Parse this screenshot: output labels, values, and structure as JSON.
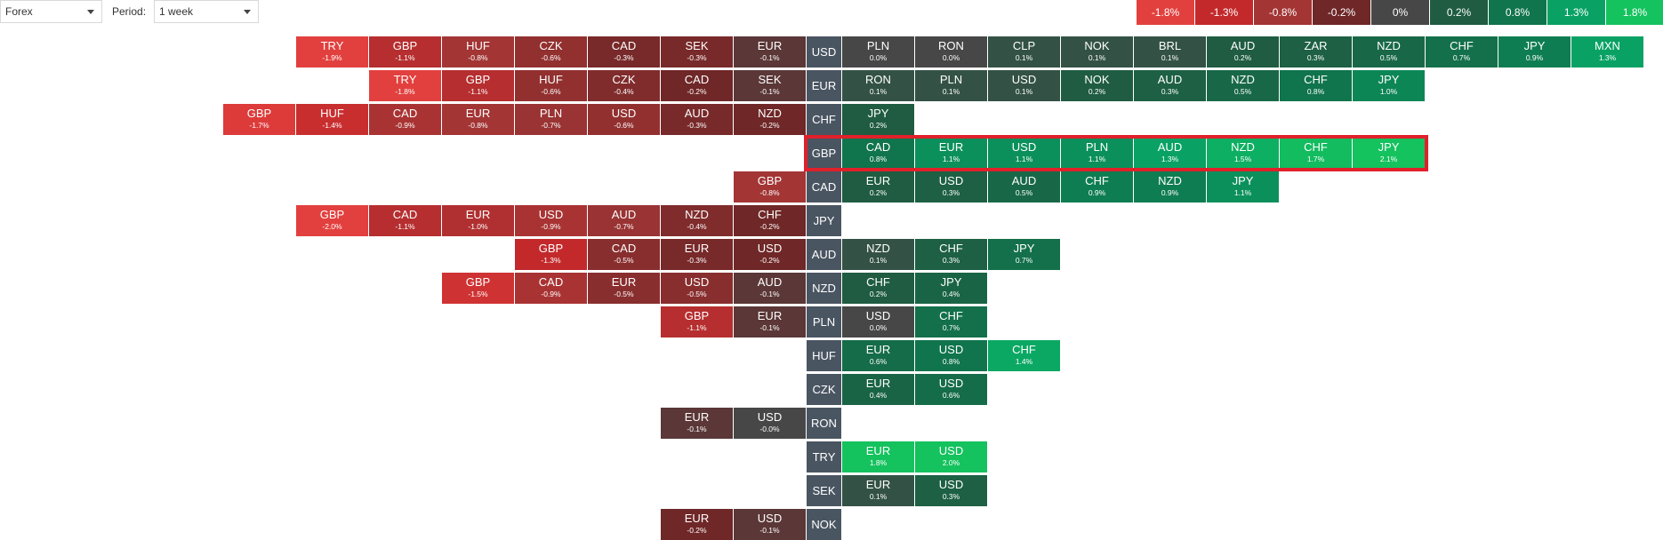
{
  "controls": {
    "market_value": "Forex",
    "period_label": "Period:",
    "period_value": "1 week"
  },
  "legend": [
    {
      "text": "-1.8%",
      "color": "#e2403e"
    },
    {
      "text": "-1.3%",
      "color": "#c3292b"
    },
    {
      "text": "-0.8%",
      "color": "#a33535"
    },
    {
      "text": "-0.2%",
      "color": "#6f2727"
    },
    {
      "text": "0%",
      "color": "#474747"
    },
    {
      "text": "0.2%",
      "color": "#1f5c42"
    },
    {
      "text": "0.8%",
      "color": "#10744d"
    },
    {
      "text": "1.3%",
      "color": "#09a264"
    },
    {
      "text": "1.8%",
      "color": "#14c25e"
    }
  ],
  "rows": [
    {
      "base": "USD",
      "left": [
        {
          "s": "TRY",
          "p": "-1.9%"
        },
        {
          "s": "GBP",
          "p": "-1.1%"
        },
        {
          "s": "HUF",
          "p": "-0.8%"
        },
        {
          "s": "CZK",
          "p": "-0.6%"
        },
        {
          "s": "CAD",
          "p": "-0.3%"
        },
        {
          "s": "SEK",
          "p": "-0.3%"
        },
        {
          "s": "EUR",
          "p": "-0.1%"
        }
      ],
      "right": [
        {
          "s": "PLN",
          "p": "0.0%"
        },
        {
          "s": "RON",
          "p": "0.0%"
        },
        {
          "s": "CLP",
          "p": "0.1%"
        },
        {
          "s": "NOK",
          "p": "0.1%"
        },
        {
          "s": "BRL",
          "p": "0.1%"
        },
        {
          "s": "AUD",
          "p": "0.2%"
        },
        {
          "s": "ZAR",
          "p": "0.3%"
        },
        {
          "s": "NZD",
          "p": "0.5%"
        },
        {
          "s": "CHF",
          "p": "0.7%"
        },
        {
          "s": "JPY",
          "p": "0.9%"
        },
        {
          "s": "MXN",
          "p": "1.3%"
        }
      ]
    },
    {
      "base": "EUR",
      "left": [
        {
          "s": "TRY",
          "p": "-1.8%"
        },
        {
          "s": "GBP",
          "p": "-1.1%"
        },
        {
          "s": "HUF",
          "p": "-0.6%"
        },
        {
          "s": "CZK",
          "p": "-0.4%"
        },
        {
          "s": "CAD",
          "p": "-0.2%"
        },
        {
          "s": "SEK",
          "p": "-0.1%"
        }
      ],
      "right": [
        {
          "s": "RON",
          "p": "0.1%"
        },
        {
          "s": "PLN",
          "p": "0.1%"
        },
        {
          "s": "USD",
          "p": "0.1%"
        },
        {
          "s": "NOK",
          "p": "0.2%"
        },
        {
          "s": "AUD",
          "p": "0.3%"
        },
        {
          "s": "NZD",
          "p": "0.5%"
        },
        {
          "s": "CHF",
          "p": "0.8%"
        },
        {
          "s": "JPY",
          "p": "1.0%"
        }
      ]
    },
    {
      "base": "CHF",
      "left": [
        {
          "s": "GBP",
          "p": "-1.7%"
        },
        {
          "s": "HUF",
          "p": "-1.4%"
        },
        {
          "s": "CAD",
          "p": "-0.9%"
        },
        {
          "s": "EUR",
          "p": "-0.8%"
        },
        {
          "s": "PLN",
          "p": "-0.7%"
        },
        {
          "s": "USD",
          "p": "-0.6%"
        },
        {
          "s": "AUD",
          "p": "-0.3%"
        },
        {
          "s": "NZD",
          "p": "-0.2%"
        }
      ],
      "right": [
        {
          "s": "JPY",
          "p": "0.2%"
        }
      ]
    },
    {
      "base": "GBP",
      "highlight": true,
      "left": [],
      "right": [
        {
          "s": "CAD",
          "p": "0.8%"
        },
        {
          "s": "EUR",
          "p": "1.1%"
        },
        {
          "s": "USD",
          "p": "1.1%"
        },
        {
          "s": "PLN",
          "p": "1.1%"
        },
        {
          "s": "AUD",
          "p": "1.3%"
        },
        {
          "s": "NZD",
          "p": "1.5%"
        },
        {
          "s": "CHF",
          "p": "1.7%"
        },
        {
          "s": "JPY",
          "p": "2.1%"
        }
      ]
    },
    {
      "base": "CAD",
      "left": [
        {
          "s": "GBP",
          "p": "-0.8%"
        }
      ],
      "right": [
        {
          "s": "EUR",
          "p": "0.2%"
        },
        {
          "s": "USD",
          "p": "0.3%"
        },
        {
          "s": "AUD",
          "p": "0.5%"
        },
        {
          "s": "CHF",
          "p": "0.9%"
        },
        {
          "s": "NZD",
          "p": "0.9%"
        },
        {
          "s": "JPY",
          "p": "1.1%"
        }
      ]
    },
    {
      "base": "JPY",
      "left": [
        {
          "s": "GBP",
          "p": "-2.0%"
        },
        {
          "s": "CAD",
          "p": "-1.1%"
        },
        {
          "s": "EUR",
          "p": "-1.0%"
        },
        {
          "s": "USD",
          "p": "-0.9%"
        },
        {
          "s": "AUD",
          "p": "-0.7%"
        },
        {
          "s": "NZD",
          "p": "-0.4%"
        },
        {
          "s": "CHF",
          "p": "-0.2%"
        }
      ],
      "right": []
    },
    {
      "base": "AUD",
      "left": [
        {
          "s": "GBP",
          "p": "-1.3%"
        },
        {
          "s": "CAD",
          "p": "-0.5%"
        },
        {
          "s": "EUR",
          "p": "-0.3%"
        },
        {
          "s": "USD",
          "p": "-0.2%"
        }
      ],
      "right": [
        {
          "s": "NZD",
          "p": "0.1%"
        },
        {
          "s": "CHF",
          "p": "0.3%"
        },
        {
          "s": "JPY",
          "p": "0.7%"
        }
      ]
    },
    {
      "base": "NZD",
      "left": [
        {
          "s": "GBP",
          "p": "-1.5%"
        },
        {
          "s": "CAD",
          "p": "-0.9%"
        },
        {
          "s": "EUR",
          "p": "-0.5%"
        },
        {
          "s": "USD",
          "p": "-0.5%"
        },
        {
          "s": "AUD",
          "p": "-0.1%"
        }
      ],
      "right": [
        {
          "s": "CHF",
          "p": "0.2%"
        },
        {
          "s": "JPY",
          "p": "0.4%"
        }
      ]
    },
    {
      "base": "PLN",
      "left": [
        {
          "s": "GBP",
          "p": "-1.1%"
        },
        {
          "s": "EUR",
          "p": "-0.1%"
        }
      ],
      "right": [
        {
          "s": "USD",
          "p": "0.0%"
        },
        {
          "s": "CHF",
          "p": "0.7%"
        }
      ]
    },
    {
      "base": "HUF",
      "left": [],
      "right": [
        {
          "s": "EUR",
          "p": "0.6%"
        },
        {
          "s": "USD",
          "p": "0.8%"
        },
        {
          "s": "CHF",
          "p": "1.4%"
        }
      ]
    },
    {
      "base": "CZK",
      "left": [],
      "right": [
        {
          "s": "EUR",
          "p": "0.4%"
        },
        {
          "s": "USD",
          "p": "0.6%"
        }
      ]
    },
    {
      "base": "RON",
      "left": [
        {
          "s": "EUR",
          "p": "-0.1%"
        },
        {
          "s": "USD",
          "p": "-0.0%"
        }
      ],
      "right": []
    },
    {
      "base": "TRY",
      "left": [],
      "right": [
        {
          "s": "EUR",
          "p": "1.8%"
        },
        {
          "s": "USD",
          "p": "2.0%"
        }
      ]
    },
    {
      "base": "SEK",
      "left": [],
      "right": [
        {
          "s": "EUR",
          "p": "0.1%"
        },
        {
          "s": "USD",
          "p": "0.3%"
        }
      ]
    },
    {
      "base": "NOK",
      "left": [
        {
          "s": "EUR",
          "p": "-0.2%"
        },
        {
          "s": "USD",
          "p": "-0.1%"
        }
      ],
      "right": []
    }
  ]
}
